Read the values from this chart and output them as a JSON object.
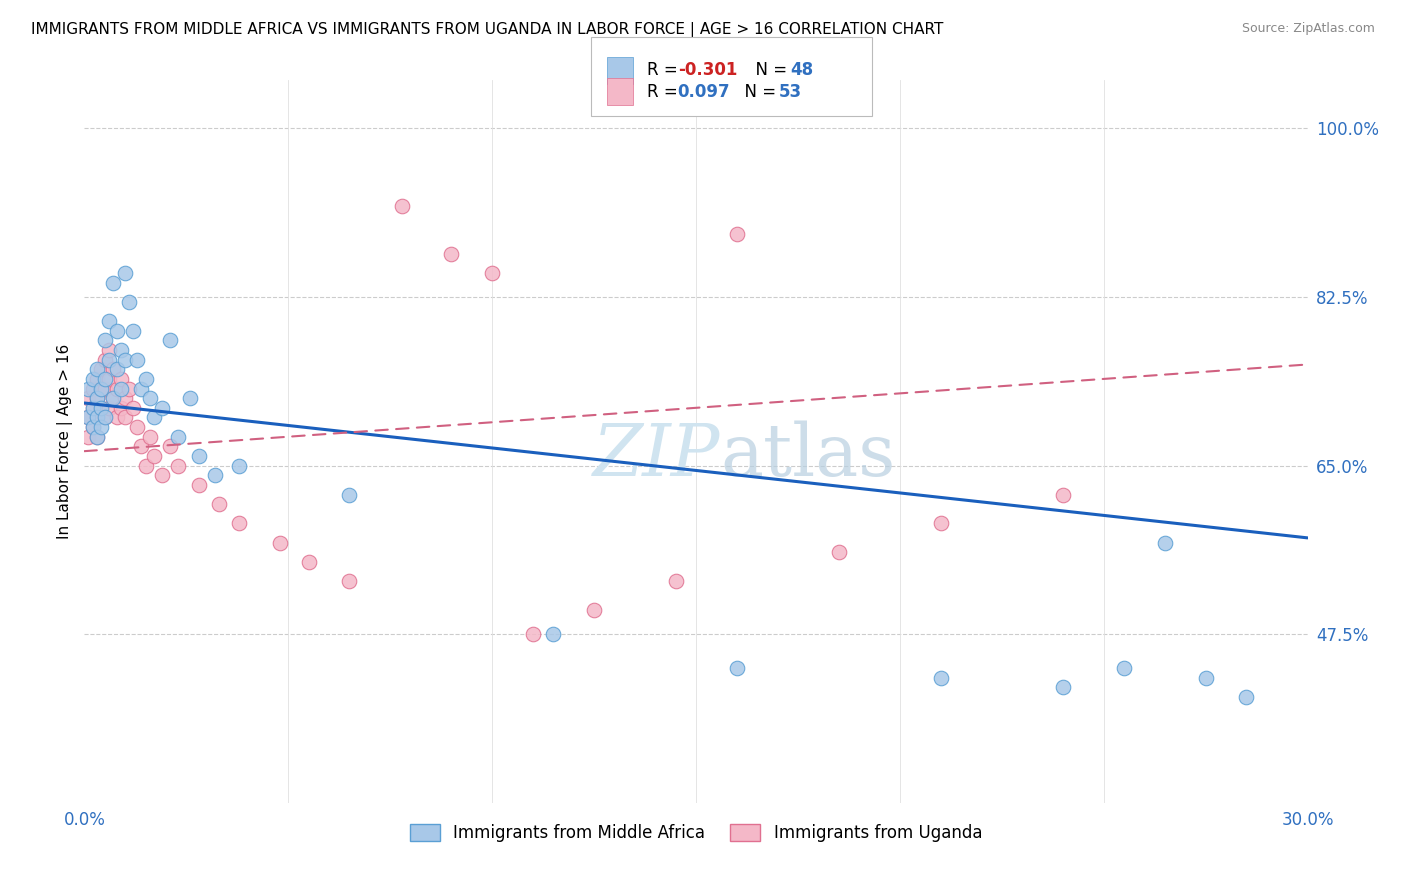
{
  "title": "IMMIGRANTS FROM MIDDLE AFRICA VS IMMIGRANTS FROM UGANDA IN LABOR FORCE | AGE > 16 CORRELATION CHART",
  "source": "Source: ZipAtlas.com",
  "ylabel": "In Labor Force | Age > 16",
  "legend_label1": "Immigrants from Middle Africa",
  "legend_label2": "Immigrants from Uganda",
  "R1": -0.301,
  "N1": 48,
  "R2": 0.097,
  "N2": 53,
  "color_blue": "#a8c8e8",
  "color_blue_edge": "#5a9fd4",
  "color_pink": "#f4b8c8",
  "color_pink_edge": "#e07090",
  "color_blue_line": "#1a5fbd",
  "color_pink_line": "#d06080",
  "watermark_color": "#d0e4f0",
  "xlim": [
    0.0,
    0.3
  ],
  "ylim": [
    0.3,
    1.05
  ],
  "blue_x": [
    0.001,
    0.001,
    0.002,
    0.002,
    0.002,
    0.003,
    0.003,
    0.003,
    0.003,
    0.004,
    0.004,
    0.004,
    0.005,
    0.005,
    0.005,
    0.006,
    0.006,
    0.007,
    0.007,
    0.008,
    0.008,
    0.009,
    0.009,
    0.01,
    0.01,
    0.011,
    0.012,
    0.013,
    0.014,
    0.015,
    0.016,
    0.017,
    0.019,
    0.021,
    0.023,
    0.026,
    0.028,
    0.032,
    0.038,
    0.065,
    0.115,
    0.16,
    0.21,
    0.24,
    0.255,
    0.265,
    0.275,
    0.285
  ],
  "blue_y": [
    0.7,
    0.73,
    0.71,
    0.69,
    0.74,
    0.72,
    0.7,
    0.68,
    0.75,
    0.73,
    0.71,
    0.69,
    0.78,
    0.74,
    0.7,
    0.8,
    0.76,
    0.84,
    0.72,
    0.79,
    0.75,
    0.77,
    0.73,
    0.85,
    0.76,
    0.82,
    0.79,
    0.76,
    0.73,
    0.74,
    0.72,
    0.7,
    0.71,
    0.78,
    0.68,
    0.72,
    0.66,
    0.64,
    0.65,
    0.62,
    0.475,
    0.44,
    0.43,
    0.42,
    0.44,
    0.57,
    0.43,
    0.41
  ],
  "pink_x": [
    0.001,
    0.001,
    0.001,
    0.002,
    0.002,
    0.002,
    0.003,
    0.003,
    0.003,
    0.003,
    0.004,
    0.004,
    0.004,
    0.005,
    0.005,
    0.005,
    0.006,
    0.006,
    0.006,
    0.007,
    0.007,
    0.008,
    0.008,
    0.009,
    0.009,
    0.01,
    0.01,
    0.011,
    0.012,
    0.013,
    0.014,
    0.015,
    0.016,
    0.017,
    0.019,
    0.021,
    0.023,
    0.028,
    0.033,
    0.038,
    0.048,
    0.055,
    0.065,
    0.078,
    0.09,
    0.1,
    0.11,
    0.125,
    0.145,
    0.16,
    0.185,
    0.21,
    0.24
  ],
  "pink_y": [
    0.72,
    0.7,
    0.68,
    0.73,
    0.71,
    0.69,
    0.74,
    0.72,
    0.7,
    0.68,
    0.75,
    0.73,
    0.71,
    0.76,
    0.73,
    0.7,
    0.77,
    0.74,
    0.71,
    0.75,
    0.72,
    0.73,
    0.7,
    0.74,
    0.71,
    0.72,
    0.7,
    0.73,
    0.71,
    0.69,
    0.67,
    0.65,
    0.68,
    0.66,
    0.64,
    0.67,
    0.65,
    0.63,
    0.61,
    0.59,
    0.57,
    0.55,
    0.53,
    0.92,
    0.87,
    0.85,
    0.475,
    0.5,
    0.53,
    0.89,
    0.56,
    0.59,
    0.62
  ],
  "blue_line_x": [
    0.0,
    0.3
  ],
  "blue_line_y": [
    0.715,
    0.575
  ],
  "pink_line_x": [
    0.0,
    0.3
  ],
  "pink_line_y": [
    0.665,
    0.755
  ]
}
